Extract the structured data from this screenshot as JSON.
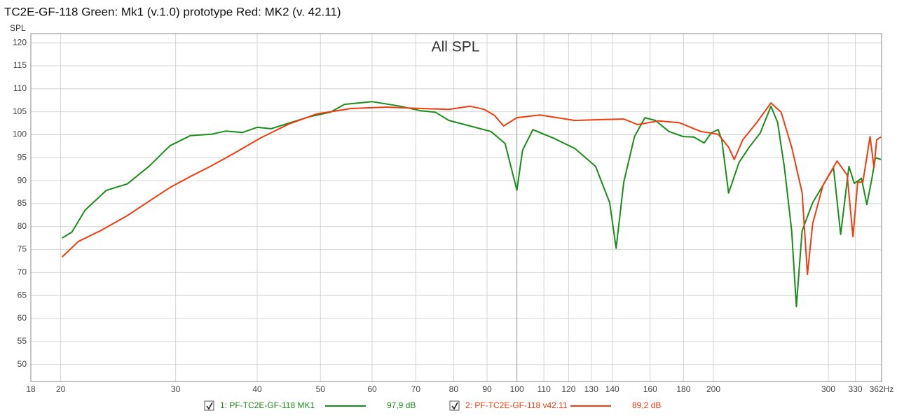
{
  "chart_data": {
    "type": "line",
    "title": "TC2E-GF-118 Green: Mk1 (v.1.0) prototype Red: MK2 (v. 42.11)",
    "y_label": "SPL",
    "annotation": "All SPL",
    "xscale": "log",
    "grid": true,
    "xlim": [
      18,
      362
    ],
    "ylim": [
      46.3,
      122
    ],
    "xticks": [
      18,
      20,
      30,
      40,
      50,
      60,
      70,
      80,
      90,
      100,
      110,
      120,
      130,
      140,
      160,
      180,
      200,
      300,
      330,
      {
        "value": 362,
        "label": "362Hz"
      }
    ],
    "yticks": [
      50,
      55,
      60,
      65,
      70,
      75,
      80,
      85,
      90,
      95,
      100,
      105,
      110,
      115,
      120
    ],
    "series": [
      {
        "name": "1: PF-TC2E-GF-118 MK1",
        "color": "#1a8c1a",
        "level_label": "97,9 dB",
        "x": [
          20.1,
          20.8,
          21.8,
          23.5,
          25.3,
          27.3,
          29.4,
          31.6,
          34.0,
          35.8,
          38.0,
          40.0,
          42.0,
          44.7,
          48.1,
          51.8,
          54.4,
          60.0,
          66.2,
          71.3,
          75.0,
          78.7,
          84.8,
          91.2,
          95.9,
          100,
          102,
          105.8,
          114,
          122.7,
          132,
          138.7,
          141.9,
          145.8,
          151.4,
          157.1,
          163,
          171,
          179.8,
          186.6,
          193.6,
          198.5,
          203.4,
          206,
          211,
          219,
          227,
          236,
          245,
          250.8,
          257,
          263.6,
          268,
          273.5,
          283.8,
          294.4,
          305.5,
          313.3,
          322.6,
          328.8,
          337.2,
          343.7,
          349.9,
          354.2,
          361.3
        ],
        "values": [
          77.5,
          78.8,
          83.6,
          87.9,
          89.3,
          93.1,
          97.6,
          99.8,
          100.1,
          100.8,
          100.5,
          101.6,
          101.3,
          102.5,
          103.9,
          104.9,
          106.6,
          107.2,
          106.2,
          105.2,
          104.9,
          103.1,
          101.9,
          100.7,
          98.1,
          87.9,
          96.6,
          101.1,
          99.2,
          97.0,
          93.1,
          85.2,
          75.3,
          89.7,
          99.6,
          103.7,
          103.1,
          100.7,
          99.6,
          99.5,
          98.2,
          100.4,
          101.1,
          98.9,
          87.3,
          94.0,
          97.3,
          100.4,
          106.2,
          102.7,
          92.8,
          79.1,
          62.6,
          79.1,
          85.2,
          89.0,
          92.8,
          78.3,
          93.1,
          89.4,
          90.5,
          84.8,
          90.5,
          95.0,
          94.6
        ]
      },
      {
        "name": "2: PF-TC2E-GF-118 v42.11",
        "color": "#f03c0f",
        "level_label": "89,2 dB",
        "x": [
          20.1,
          21.3,
          23.0,
          25.3,
          27.3,
          29.4,
          31.6,
          34.0,
          36.7,
          40.5,
          44.7,
          49.3,
          55.7,
          63.1,
          71.3,
          78.7,
          84.8,
          89.1,
          92.4,
          95.4,
          100,
          108.5,
          122.7,
          135.4,
          145.8,
          153.1,
          165,
          177.5,
          191.3,
          203.4,
          211,
          215.3,
          221.8,
          232.9,
          245,
          254,
          263.6,
          273.5,
          278.7,
          283.8,
          294.4,
          309.4,
          320.6,
          327.3,
          332.7,
          338.9,
          347.6,
          352.5,
          355.8,
          361.3
        ],
        "values": [
          73.4,
          76.8,
          79.1,
          82.4,
          85.5,
          88.5,
          90.9,
          93.2,
          95.8,
          99.3,
          102.3,
          104.5,
          105.7,
          106.0,
          105.7,
          105.5,
          106.2,
          105.5,
          104.2,
          101.9,
          103.7,
          104.3,
          103.1,
          103.3,
          103.4,
          102.2,
          103.0,
          102.6,
          100.7,
          100.1,
          97.3,
          94.6,
          98.9,
          102.6,
          106.9,
          104.9,
          97.3,
          87.4,
          69.6,
          80.6,
          89.0,
          94.3,
          91.2,
          77.8,
          89.7,
          89.7,
          99.6,
          92.8,
          98.9,
          99.5
        ]
      }
    ]
  }
}
